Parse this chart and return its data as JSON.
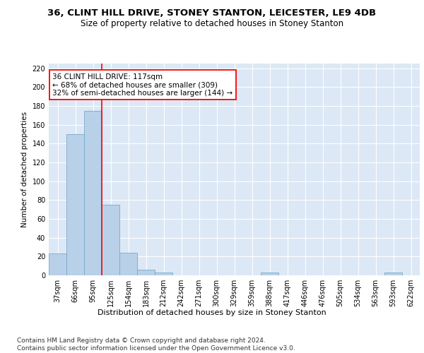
{
  "title1": "36, CLINT HILL DRIVE, STONEY STANTON, LEICESTER, LE9 4DB",
  "title2": "Size of property relative to detached houses in Stoney Stanton",
  "xlabel": "Distribution of detached houses by size in Stoney Stanton",
  "ylabel": "Number of detached properties",
  "categories": [
    "37sqm",
    "66sqm",
    "95sqm",
    "125sqm",
    "154sqm",
    "183sqm",
    "212sqm",
    "242sqm",
    "271sqm",
    "300sqm",
    "329sqm",
    "359sqm",
    "388sqm",
    "417sqm",
    "446sqm",
    "476sqm",
    "505sqm",
    "534sqm",
    "563sqm",
    "593sqm",
    "622sqm"
  ],
  "values": [
    23,
    150,
    175,
    75,
    24,
    6,
    3,
    0,
    0,
    0,
    0,
    0,
    3,
    0,
    0,
    0,
    0,
    0,
    0,
    3,
    0
  ],
  "bar_color": "#b8d0e8",
  "bar_edge_color": "#7aaac8",
  "vline_color": "red",
  "vline_x_index": 2.5,
  "annotation_text": "36 CLINT HILL DRIVE: 117sqm\n← 68% of detached houses are smaller (309)\n32% of semi-detached houses are larger (144) →",
  "annotation_box_color": "white",
  "annotation_box_edge_color": "red",
  "footnote": "Contains HM Land Registry data © Crown copyright and database right 2024.\nContains public sector information licensed under the Open Government Licence v3.0.",
  "ylim": [
    0,
    225
  ],
  "yticks": [
    0,
    20,
    40,
    60,
    80,
    100,
    120,
    140,
    160,
    180,
    200,
    220
  ],
  "background_color": "#dce8f5",
  "title1_fontsize": 9.5,
  "title2_fontsize": 8.5,
  "xlabel_fontsize": 8,
  "ylabel_fontsize": 7.5,
  "tick_fontsize": 7,
  "annotation_fontsize": 7.5,
  "footnote_fontsize": 6.5
}
